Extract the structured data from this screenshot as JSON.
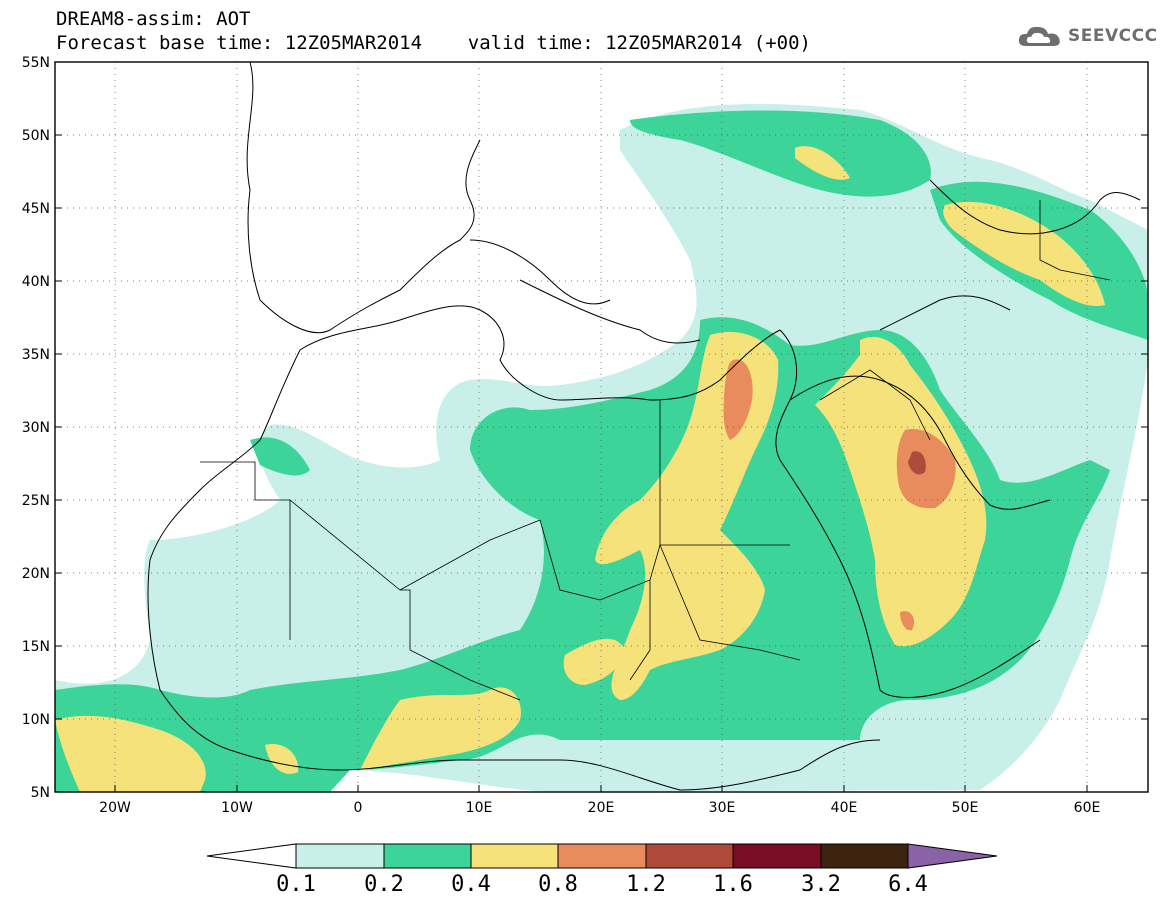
{
  "header": {
    "line1": "DREAM8-assim: AOT",
    "line2": "Forecast base time: 12Z05MAR2014    valid time: 12Z05MAR2014 (+00)"
  },
  "brand": {
    "name": "SEEVCCC",
    "icon": "cloud-icon"
  },
  "map": {
    "lat_range": [
      5,
      55
    ],
    "lon_range": [
      -25,
      65
    ],
    "lat_labels": [
      "55N",
      "50N",
      "45N",
      "40N",
      "35N",
      "30N",
      "25N",
      "20N",
      "15N",
      "10N",
      "5N"
    ],
    "lon_labels": [
      "20W",
      "10W",
      "0",
      "10E",
      "20E",
      "30E",
      "40E",
      "50E",
      "60E"
    ],
    "grid": "dotted"
  },
  "colorbar": {
    "labels": [
      "0.1",
      "0.2",
      "0.4",
      "0.8",
      "1.2",
      "1.6",
      "3.2",
      "6.4"
    ],
    "colors": [
      "#ffffff",
      "#c8f0e8",
      "#3dd49a",
      "#f5e27a",
      "#e88c5e",
      "#b04a3a",
      "#7a0d26",
      "#3d2410",
      "#8a62a8"
    ]
  }
}
